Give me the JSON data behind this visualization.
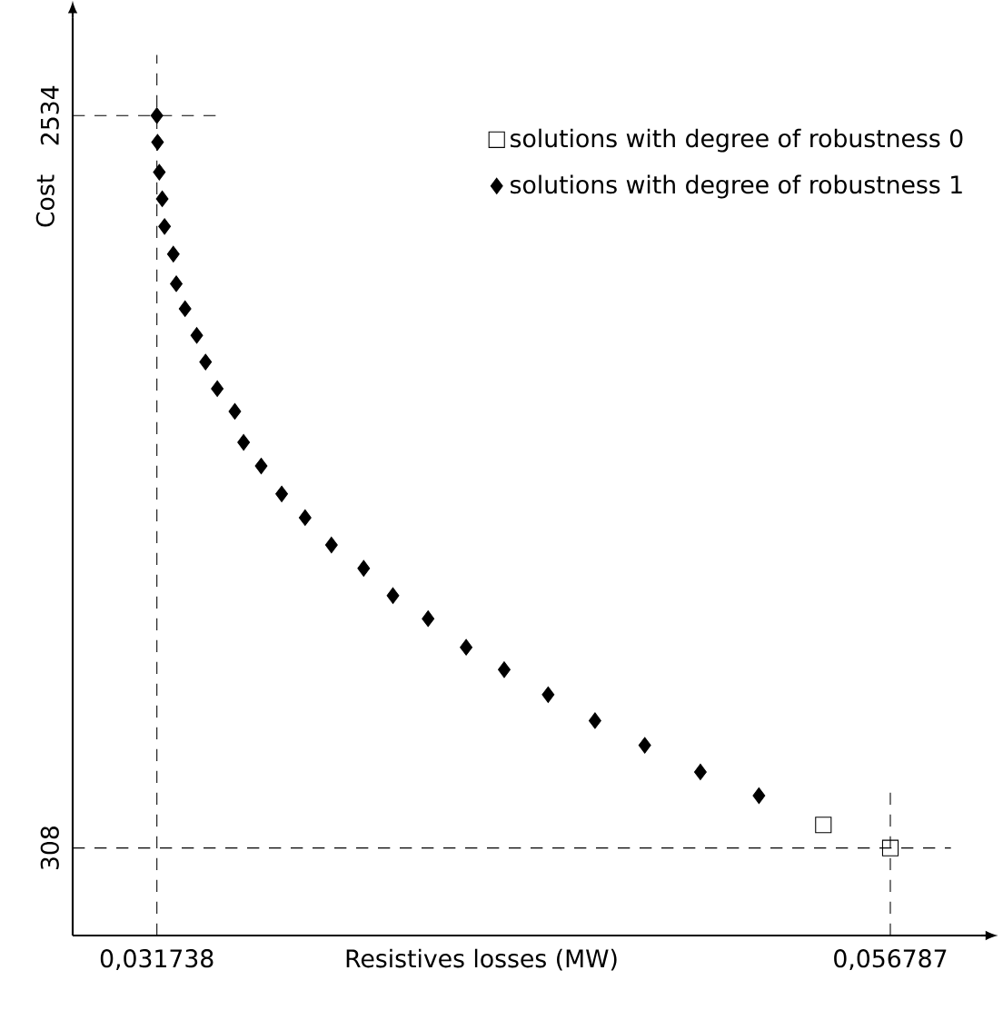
{
  "chart_data": {
    "type": "scatter",
    "xlabel": "Resistives losses (MW)",
    "ylabel": "Cost",
    "xlim": [
      0.028862,
      0.05989
    ],
    "ylim": [
      42,
      2832
    ],
    "xticks": [
      {
        "value": 0.031738,
        "label": "0,031738"
      },
      {
        "value": 0.056787,
        "label": "0,056787"
      }
    ],
    "yticks": [
      308,
      2534
    ],
    "grid": false,
    "legend": "top right",
    "ref_lines": [
      {
        "axis": "x",
        "value": 0.031738,
        "color": "#000000",
        "line_style": "dashed"
      },
      {
        "axis": "x",
        "value": 0.056787,
        "color": "#000000",
        "line_style": "dashed"
      },
      {
        "axis": "y",
        "value": 308,
        "color": "#000000",
        "line_style": "dashed"
      },
      {
        "axis": "y",
        "value": 2534,
        "color": "#000000",
        "line_style": "dashed"
      }
    ],
    "series": [
      {
        "name": "solutions with degree of robustness 0",
        "color": "#000000",
        "marker": "square",
        "x": [
          0.0545,
          0.056787
        ],
        "values": [
          378,
          308
        ]
      },
      {
        "name": "solutions with degree of robustness 1",
        "color": "#000000",
        "marker": "diamond",
        "x": [
          0.031738,
          0.03176,
          0.03182,
          0.03192,
          0.032,
          0.0323,
          0.0324,
          0.0327,
          0.0331,
          0.0334,
          0.0338,
          0.0344,
          0.0347,
          0.0353,
          0.036,
          0.0368,
          0.0377,
          0.0388,
          0.0398,
          0.041,
          0.0423,
          0.0436,
          0.0451,
          0.0467,
          0.0484,
          0.0503,
          0.0523
        ],
        "values": [
          2534,
          2453,
          2362,
          2281,
          2197,
          2113,
          2023,
          1947,
          1866,
          1785,
          1704,
          1635,
          1541,
          1469,
          1384,
          1312,
          1229,
          1158,
          1075,
          1005,
          918,
          850,
          774,
          695,
          620,
          539,
          467
        ]
      }
    ]
  }
}
